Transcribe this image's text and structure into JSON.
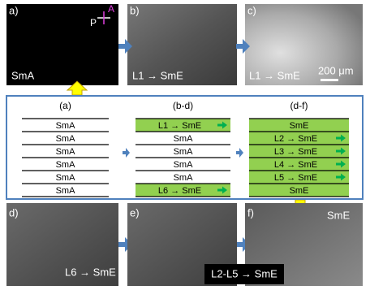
{
  "panels": [
    {
      "label": "a)",
      "caption": "SmA"
    },
    {
      "label": "b)",
      "caption": "L1 → SmE"
    },
    {
      "label": "c)",
      "caption": "L1 → SmE"
    },
    {
      "label": "d)",
      "caption": "L6 → SmE"
    },
    {
      "label": "e)"
    },
    {
      "label": "f)",
      "caption": "SmE"
    }
  ],
  "polarizer": {
    "p": "P",
    "a": "A"
  },
  "scale_bar": "200 μm",
  "bottom_caption": "L2-L5 → SmE",
  "diagram": {
    "columns": [
      {
        "header": "(a)",
        "rows": [
          "SmA",
          "SmA",
          "SmA",
          "SmA",
          "SmA",
          "SmA"
        ]
      },
      {
        "header": "(b-d)",
        "rows": [
          "L1 → SmE",
          "SmA",
          "SmA",
          "SmA",
          "SmA",
          "L6 → SmE"
        ]
      },
      {
        "header": "(d-f)",
        "rows": [
          "SmE",
          "L2 → SmE",
          "L3 → SmE",
          "L4 → SmE",
          "L5 → SmE",
          "SmE"
        ]
      }
    ]
  }
}
